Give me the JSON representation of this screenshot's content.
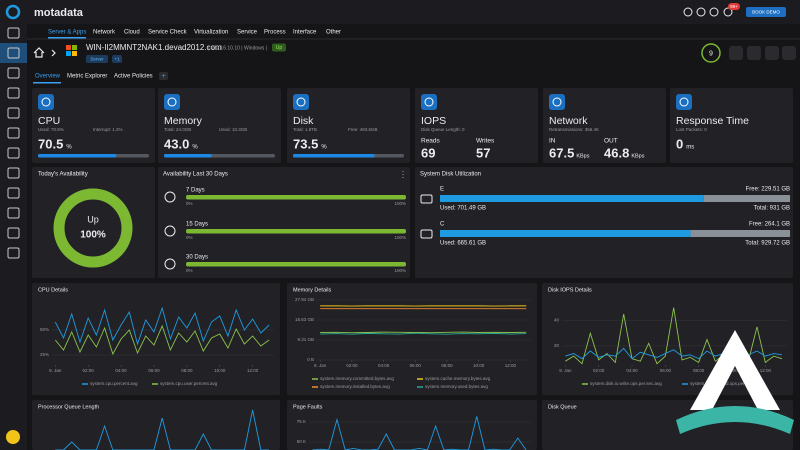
{
  "header": {
    "logo": "motadata",
    "tabs": [
      "Server & Apps",
      "Network",
      "Cloud",
      "Service Check",
      "Virtualization",
      "Service",
      "Process",
      "Interface",
      "Other"
    ],
    "notifications": "99+",
    "button": "BOOK DEMO"
  },
  "monitor": {
    "hostname": "WIN-II2MMNT2NAK1.devad2012.com",
    "details": "| 172.16.10.10 | Windows |",
    "status": "Up",
    "tags": [
      "Server",
      "+1"
    ],
    "alerts": 9
  },
  "tabs": [
    "Overview",
    "Metric Explorer",
    "Active Policies",
    "+"
  ],
  "cards": [
    {
      "title": "CPU",
      "stats": [
        "Used: 70.5%",
        "Interrupt: 1.2%"
      ],
      "value": 70.5,
      "unit": "%",
      "xlim": [
        0,
        100
      ],
      "bar_color": "#1e88e5"
    },
    {
      "title": "Memory",
      "stats": [
        "Total: 24.0GB",
        "Used: 10.3GB"
      ],
      "value": 43,
      "value_label": "43.0",
      "unit": "%",
      "xlim": [
        0,
        100
      ],
      "bar_color": "#1e88e5"
    },
    {
      "title": "Disk",
      "stats": [
        "Total: 1.8TB",
        "Free: 493.6GB"
      ],
      "value": 73.5,
      "unit": "%",
      "xlim": [
        0,
        100
      ],
      "bar_color": "#1e88e5"
    },
    {
      "title": "IOPS",
      "stats": [
        "Disk Queue Length: 0"
      ],
      "metrics": [
        {
          "label": "Reads",
          "value": 69
        },
        {
          "label": "Writes",
          "value": 57
        }
      ]
    },
    {
      "title": "Network",
      "stats": [
        "Retransmissions: 356.4K"
      ],
      "metrics": [
        {
          "label": "IN",
          "value": 67.5,
          "unit": "KBps"
        },
        {
          "label": "OUT",
          "value": 46.8,
          "unit": "KBps"
        }
      ]
    },
    {
      "title": "Response Time",
      "stats": [
        "Lost Packets: 0"
      ],
      "value": 0,
      "unit": "ms"
    }
  ],
  "availability_today": {
    "title": "Today's Availability",
    "status": "Up",
    "percent": 100,
    "percent_label": "100%",
    "xlim": [
      0,
      100
    ],
    "color": "#7cb832"
  },
  "availability_30": {
    "title": "Availability Last 30 Days",
    "xlim": [
      0,
      100
    ],
    "xticks": [
      {
        "value": 0,
        "label": "0%"
      },
      {
        "value": 100,
        "label": "100%"
      }
    ],
    "color": "#7cb832",
    "rows": [
      {
        "label": "7 Days",
        "percent": 100
      },
      {
        "label": "15 Days",
        "percent": 100
      },
      {
        "label": "30 Days",
        "percent": 100
      }
    ]
  },
  "disk_utilization": {
    "title": "System Disk Utilization",
    "used_color": "#1e9be0",
    "free_color": "#8a9098",
    "drives": [
      {
        "name": "E",
        "free": 229.51,
        "free_label": "Free: 229.51 GB",
        "used": 701.49,
        "used_label": "Used: 701.49 GB",
        "total": 931,
        "total_label": "Total: 931 GB"
      },
      {
        "name": "C",
        "free": 264.1,
        "free_label": "Free: 264.1 GB",
        "used": 665.61,
        "used_label": "Used: 665.61 GB",
        "total": 929.72,
        "total_label": "Total: 929.72 GB"
      }
    ]
  },
  "charts": [
    {
      "type": "line",
      "title": "CPU Details",
      "x": [
        0,
        0.5,
        1,
        1.5,
        2,
        2.5,
        3,
        3.5,
        4,
        4.5,
        5,
        5.5,
        6,
        6.5,
        7,
        7.5,
        8,
        8.5,
        9,
        9.5,
        10,
        10.5,
        11,
        11.5,
        12,
        12.5,
        13
      ],
      "xlim": [
        -0.2,
        13.3
      ],
      "xticks": [
        {
          "value": 0,
          "label": "9. Jan"
        },
        {
          "value": 2,
          "label": "02:00"
        },
        {
          "value": 4,
          "label": "04:00"
        },
        {
          "value": 6,
          "label": "06:00"
        },
        {
          "value": 8,
          "label": "08:00"
        },
        {
          "value": 10,
          "label": "10:00"
        },
        {
          "value": 12,
          "label": "12:00"
        }
      ],
      "ylim": [
        15,
        80
      ],
      "yticks": [
        {
          "value": 50,
          "label": "50%"
        },
        {
          "value": 25,
          "label": "25%"
        }
      ],
      "series": [
        {
          "name": "system.cpu.percent.avg",
          "color": "#1e9be0",
          "values": [
            58,
            42,
            66,
            38,
            62,
            45,
            70,
            40,
            55,
            68,
            36,
            60,
            48,
            72,
            41,
            63,
            52,
            67,
            39,
            58,
            64,
            44,
            70,
            50,
            61,
            47,
            55
          ]
        },
        {
          "name": "system.cpu.user.percent.avg",
          "color": "#8bc34a",
          "values": [
            40,
            30,
            48,
            28,
            45,
            33,
            52,
            26,
            41,
            50,
            27,
            44,
            35,
            54,
            30,
            47,
            38,
            49,
            29,
            42,
            46,
            32,
            51,
            36,
            44,
            34,
            40
          ]
        }
      ]
    },
    {
      "type": "line",
      "title": "Memory Details",
      "x": [
        0,
        1,
        2,
        3,
        4,
        5,
        6,
        7,
        8,
        9,
        10,
        11,
        12,
        13
      ],
      "xlim": [
        -0.2,
        13.3
      ],
      "xticks": [
        {
          "value": 0,
          "label": "9. Jan"
        },
        {
          "value": 2,
          "label": "02:00"
        },
        {
          "value": 4,
          "label": "04:00"
        },
        {
          "value": 6,
          "label": "06:00"
        },
        {
          "value": 8,
          "label": "08:00"
        },
        {
          "value": 10,
          "label": "10:00"
        },
        {
          "value": 12,
          "label": "12:00"
        }
      ],
      "ylim": [
        0,
        27.94
      ],
      "yticks": [
        {
          "value": 27.94,
          "label": "27.94 GB"
        },
        {
          "value": 18.63,
          "label": "18.63 GB"
        },
        {
          "value": 9.31,
          "label": "9.31 GB"
        },
        {
          "value": 0,
          "label": "0 B"
        }
      ],
      "series": [
        {
          "name": "system.memory.committed.bytes.avg",
          "color": "#8bc34a",
          "values": [
            12.8,
            12.9,
            12.7,
            12.8,
            13.0,
            12.9,
            12.8,
            12.7,
            12.9,
            13.0,
            12.8,
            12.9,
            12.8,
            12.9
          ]
        },
        {
          "name": "system.cache.memory.bytes.avg",
          "color": "#f0c419",
          "values": [
            25.2,
            25.2,
            25.1,
            25.2,
            25.2,
            25.2,
            25.1,
            25.2,
            25.2,
            25.2,
            25.2,
            25.1,
            25.2,
            25.2
          ]
        },
        {
          "name": "system.memory.installed.bytes.avg",
          "color": "#f08c2e",
          "values": [
            23.9,
            23.9,
            23.9,
            23.9,
            23.9,
            23.9,
            23.9,
            23.9,
            23.9,
            23.9,
            23.9,
            23.9,
            23.9,
            23.9
          ]
        },
        {
          "name": "system.memory.used.bytes.avg",
          "color": "#26a69a",
          "values": [
            12.1,
            12.3,
            12.0,
            12.4,
            12.2,
            12.1,
            12.5,
            12.2,
            12.0,
            12.3,
            12.2,
            12.4,
            12.1,
            12.3
          ]
        }
      ]
    },
    {
      "type": "line",
      "title": "Disk IOPS Details",
      "x": [
        0,
        0.5,
        1,
        1.5,
        2,
        2.5,
        3,
        3.5,
        4,
        4.5,
        5,
        5.5,
        6,
        6.5,
        7,
        7.5,
        8,
        8.5,
        9,
        9.5,
        10,
        10.5,
        11,
        11.5,
        12,
        12.5,
        13
      ],
      "xlim": [
        -0.2,
        13.3
      ],
      "xticks": [
        {
          "value": 0,
          "label": "9. Jan"
        },
        {
          "value": 2,
          "label": "02:00"
        },
        {
          "value": 4,
          "label": "04:00"
        },
        {
          "value": 6,
          "label": "06:00"
        },
        {
          "value": 8,
          "label": "08:00"
        },
        {
          "value": 10,
          "label": "10:00"
        },
        {
          "value": 12,
          "label": "12:00"
        }
      ],
      "ylim": [
        5,
        60
      ],
      "yticks": [
        40,
        20
      ],
      "series": [
        {
          "name": "system.disk.io.write.ops.per.sec.avg",
          "color": "#8bc34a",
          "values": [
            8,
            12,
            6,
            30,
            9,
            14,
            7,
            45,
            10,
            8,
            22,
            6,
            12,
            50,
            9,
            11,
            7,
            25,
            8,
            13,
            6,
            18,
            9,
            35,
            7,
            12,
            10
          ]
        },
        {
          "name": "system.disk.io.read.ops.per.sec.avg",
          "color": "#1e9be0",
          "values": [
            12,
            14,
            10,
            16,
            11,
            13,
            12,
            18,
            10,
            15,
            13,
            11,
            14,
            17,
            12,
            13,
            10,
            16,
            12,
            14,
            11,
            15,
            13,
            16,
            12,
            14,
            13
          ]
        }
      ]
    },
    {
      "type": "line",
      "title": "Processor Queue Length",
      "x": [
        0,
        0.5,
        1,
        1.5,
        2,
        2.5,
        3,
        3.5,
        4,
        4.5,
        5,
        5.5,
        6,
        6.5,
        7,
        7.5,
        8,
        8.5,
        9,
        9.5,
        10,
        10.5,
        11,
        11.5,
        12,
        12.5,
        13
      ],
      "xlim": [
        -0.2,
        13.3
      ],
      "ylim": [
        0,
        5
      ],
      "series": [
        {
          "name": "system.processor.queue.length.avg",
          "color": "#1e9be0",
          "values": [
            0,
            0,
            1,
            0,
            0,
            0,
            3,
            0,
            0,
            0,
            0,
            0,
            0,
            4,
            0,
            0,
            0,
            0,
            2,
            0,
            0,
            0,
            0,
            0,
            5,
            0,
            0
          ]
        }
      ]
    },
    {
      "type": "line",
      "title": "Page Faults",
      "x": [
        0,
        0.5,
        1,
        1.5,
        2,
        2.5,
        3,
        3.5,
        4,
        4.5,
        5,
        5.5,
        6,
        6.5,
        7,
        7.5,
        8,
        8.5,
        9,
        9.5,
        10,
        10.5,
        11,
        11.5,
        12,
        12.5,
        13
      ],
      "xlim": [
        -0.2,
        13.3
      ],
      "ylim": [
        35000,
        90000
      ],
      "yticks": [
        {
          "value": 75000,
          "label": "75 K"
        },
        {
          "value": 50000,
          "label": "50 K"
        }
      ],
      "series": [
        {
          "name": "system.memory.page.faults.per.sec.avg",
          "color": "#1e9be0",
          "values": [
            40000,
            41000,
            40000,
            78000,
            40000,
            42000,
            40000,
            40000,
            41000,
            60000,
            40000,
            40000,
            40000,
            42000,
            40000,
            70000,
            40000,
            41000,
            40000,
            40000,
            82000,
            40000,
            41000,
            40000,
            40000,
            55000,
            40000
          ]
        }
      ]
    },
    {
      "type": "line",
      "title": "Disk Queue"
    }
  ]
}
